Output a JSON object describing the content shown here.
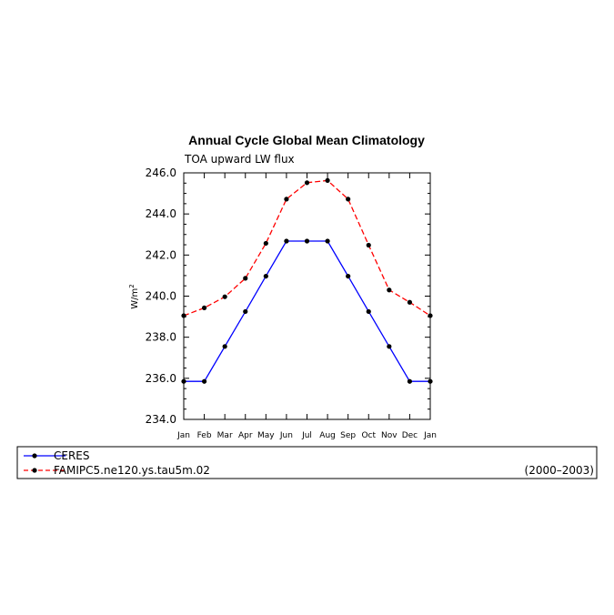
{
  "chart_data": {
    "type": "line",
    "title": "Annual Cycle Global Mean Climatology",
    "subtitle": "TOA upward LW flux",
    "ylabel": "W/m²",
    "ylabel_base": "W/m",
    "ylabel_sup": "2",
    "ylim": [
      234.0,
      246.0
    ],
    "yticks": [
      "234.0",
      "236.0",
      "238.0",
      "240.0",
      "242.0",
      "244.0",
      "246.0"
    ],
    "categories": [
      "Jan",
      "Feb",
      "Mar",
      "Apr",
      "May",
      "Jun",
      "Jul",
      "Aug",
      "Sep",
      "Oct",
      "Nov",
      "Dec",
      "Jan"
    ],
    "grid": false,
    "legend_position": "bottom",
    "series": [
      {
        "name": "CERES",
        "color": "#0000ff",
        "dash": "solid",
        "values": [
          235.85,
          235.85,
          237.55,
          239.25,
          240.97,
          242.68,
          242.68,
          242.68,
          240.97,
          239.25,
          237.55,
          235.85,
          235.85
        ]
      },
      {
        "name": "FAMIPC5.ne120.ys.tau5m.02",
        "color": "#ff0000",
        "dash": "dashed",
        "values": [
          239.05,
          239.43,
          239.97,
          240.87,
          242.57,
          244.72,
          245.52,
          245.63,
          244.72,
          242.48,
          240.3,
          239.7,
          239.05
        ]
      }
    ],
    "legend_note": "(2000–2003)"
  }
}
